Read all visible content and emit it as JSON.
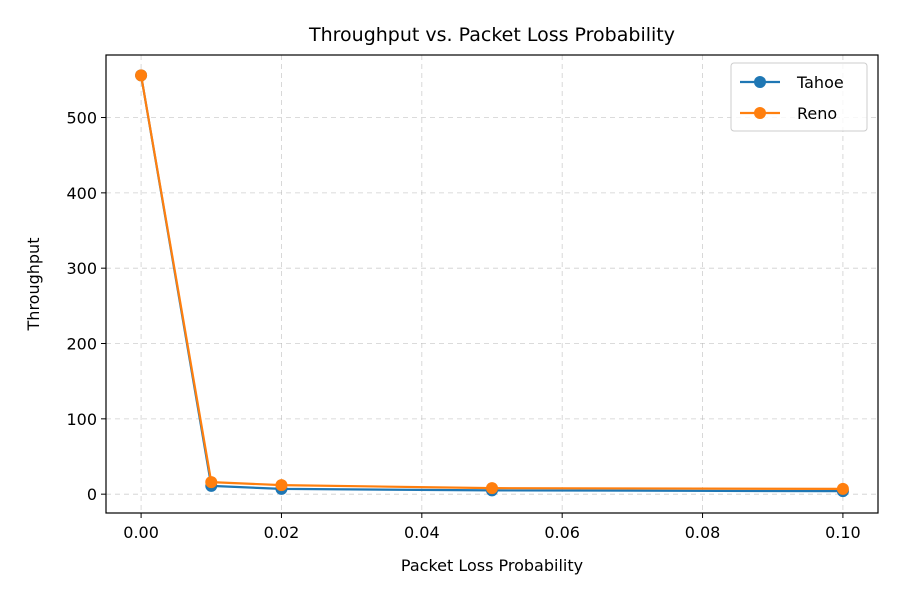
{
  "chart_data": {
    "type": "line",
    "title": "Throughput vs. Packet Loss Probability",
    "xlabel": "Packet Loss Probability",
    "ylabel": "Throughput",
    "x": [
      0.0,
      0.01,
      0.02,
      0.05,
      0.1
    ],
    "xlim": [
      -0.005,
      0.105
    ],
    "ylim": [
      -25,
      583
    ],
    "xticks": [
      0.0,
      0.02,
      0.04,
      0.06,
      0.08,
      0.1
    ],
    "xtick_labels": [
      "0.00",
      "0.02",
      "0.04",
      "0.06",
      "0.08",
      "0.10"
    ],
    "yticks": [
      0,
      100,
      200,
      300,
      400,
      500
    ],
    "ytick_labels": [
      "0",
      "100",
      "200",
      "300",
      "400",
      "500"
    ],
    "grid": true,
    "legend_position": "top-right",
    "series": [
      {
        "name": "Tahoe",
        "color": "#1f77b4",
        "values": [
          556,
          11,
          7,
          5,
          4
        ]
      },
      {
        "name": "Reno",
        "color": "#ff7f0e",
        "values": [
          556,
          16,
          12,
          8,
          7
        ]
      }
    ]
  }
}
